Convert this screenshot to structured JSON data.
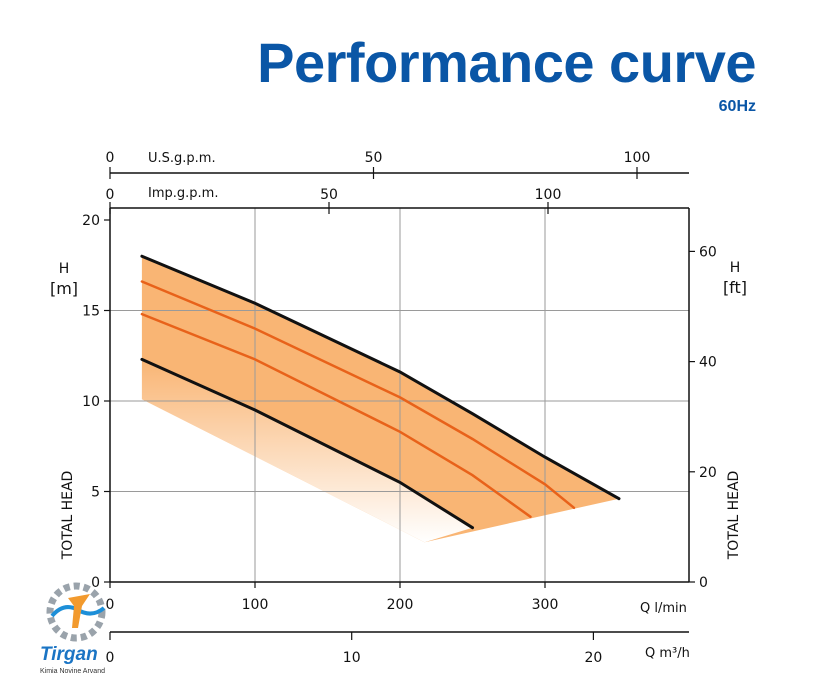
{
  "header": {
    "title": "Performance curve",
    "subtitle": "60Hz"
  },
  "logo": {
    "brand": "Tirgan",
    "tagline": "Kimia Novine Arvand"
  },
  "chart_data": {
    "type": "line",
    "title": "Performance curve",
    "subtitle": "60Hz",
    "x": {
      "label": "Q l/min",
      "min": 0,
      "max": 400,
      "ticks": [
        0,
        100,
        200,
        300
      ],
      "gridlines": [
        100,
        200,
        300
      ]
    },
    "x2": {
      "label": "Q m³/h",
      "ticks": [
        0,
        10,
        20
      ]
    },
    "x3": {
      "label": "U.S.g.p.m.",
      "ticks": [
        0,
        50,
        100
      ]
    },
    "x4": {
      "label": "Imp.g.p.m.",
      "ticks": [
        0,
        50,
        100
      ]
    },
    "y": {
      "label": "TOTAL HEAD",
      "unit_symbol": "H",
      "unit": "[m]",
      "min": 0,
      "max": 20,
      "ticks": [
        0,
        5,
        10,
        15,
        20
      ],
      "gridlines": [
        5,
        10,
        15
      ]
    },
    "y2": {
      "label": "TOTAL HEAD",
      "unit_symbol": "H",
      "unit": "[ft]",
      "ticks": [
        0,
        20,
        40,
        60
      ]
    },
    "grid": true,
    "band": {
      "color": "#f9b574",
      "fade_color": "#ffffff"
    },
    "series": [
      {
        "color": "#111111",
        "width": 3,
        "points": [
          [
            22,
            18.0
          ],
          [
            100,
            15.4
          ],
          [
            200,
            11.6
          ],
          [
            250,
            9.3
          ],
          [
            300,
            6.9
          ],
          [
            351,
            4.6
          ]
        ]
      },
      {
        "color": "#e8621a",
        "width": 2.5,
        "points": [
          [
            22,
            16.6
          ],
          [
            100,
            14.0
          ],
          [
            200,
            10.2
          ],
          [
            250,
            7.9
          ],
          [
            300,
            5.4
          ],
          [
            320,
            4.1
          ]
        ]
      },
      {
        "color": "#e8621a",
        "width": 2.5,
        "points": [
          [
            22,
            14.8
          ],
          [
            100,
            12.3
          ],
          [
            200,
            8.3
          ],
          [
            250,
            5.9
          ],
          [
            290,
            3.6
          ]
        ]
      },
      {
        "color": "#111111",
        "width": 3,
        "points": [
          [
            22,
            12.3
          ],
          [
            100,
            9.5
          ],
          [
            200,
            5.5
          ],
          [
            250,
            3.0
          ]
        ]
      }
    ]
  }
}
